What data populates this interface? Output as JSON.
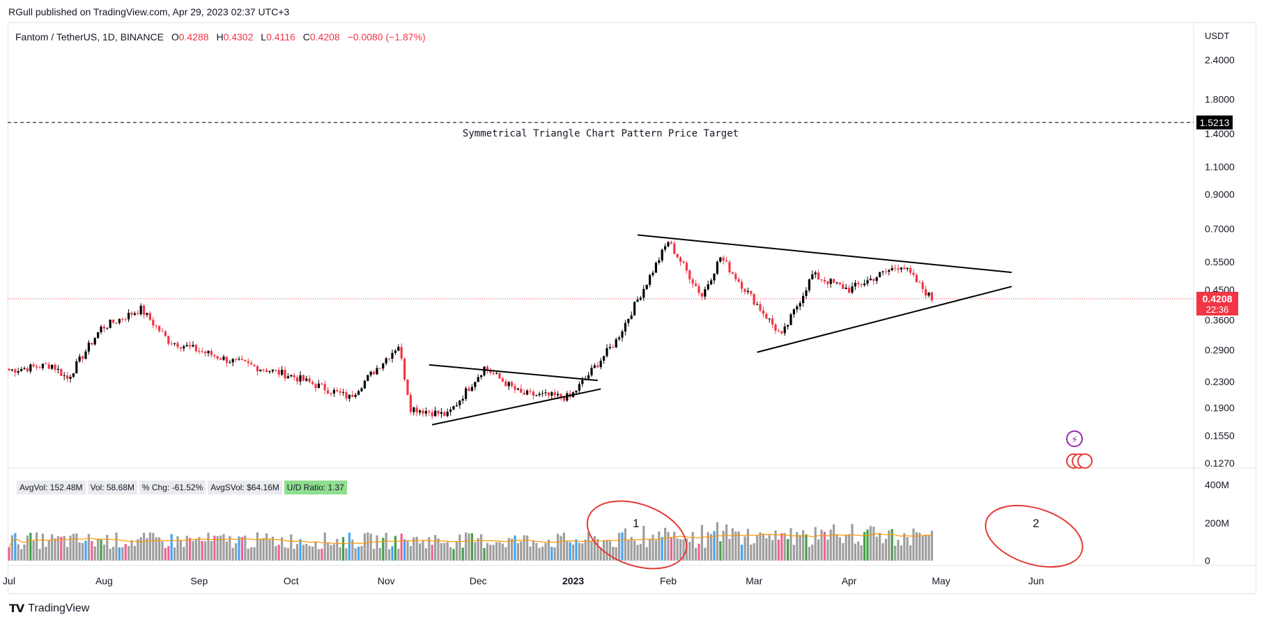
{
  "published_line": "RGull published on TradingView.com, Apr 29, 2023 02:37 UTC+3",
  "brand": "TradingView",
  "legend": {
    "symbol": "Fantom / TetherUS, 1D, BINANCE",
    "open_label": "O",
    "open": "0.4288",
    "high_label": "H",
    "high": "0.4302",
    "low_label": "L",
    "low": "0.4116",
    "close_label": "C",
    "close": "0.4208",
    "change": "−0.0080 (−1.87%)"
  },
  "indicators": [
    {
      "text": "AvgVol: 152.48M",
      "highlight": false
    },
    {
      "text": "Vol: 58.68M",
      "highlight": false
    },
    {
      "text": "% Chg: -61.52%",
      "highlight": false
    },
    {
      "text": "AvgSVol: $64.16M",
      "highlight": false
    },
    {
      "text": "U/D Ratio: 1.37",
      "highlight": true
    }
  ],
  "colors": {
    "up": "#089981",
    "down": "#f23645",
    "candle_up": "#000000",
    "candle_down": "#f23645",
    "vol_up": "#43a047",
    "vol_down": "#f06292",
    "vol_blue": "#42a5f5",
    "vol_grey": "#9e9e9e",
    "avg_line": "#ff9800",
    "dot": "#4dd0e1"
  },
  "chart_data": [
    {
      "type": "candlestick",
      "title": "Fantom / TetherUS, 1D, BINANCE",
      "currency": "USDT",
      "scale": "log",
      "y_ticks": [
        "2.4000",
        "1.8000",
        "1.4000",
        "1.1000",
        "0.9000",
        "0.7000",
        "0.5500",
        "0.4500",
        "0.3600",
        "0.2900",
        "0.2300",
        "0.1900",
        "0.1550",
        "0.1270"
      ],
      "x_ticks": [
        "Jul",
        "Aug",
        "Sep",
        "Oct",
        "Nov",
        "Dec",
        "2023",
        "Feb",
        "Mar",
        "Apr",
        "May",
        "Jun"
      ],
      "last_price": "0.4208",
      "countdown": "22:36",
      "target_price": "1.5213",
      "target_label": "Symmetrical Triangle Chart Pattern Price Target",
      "closing_prices_approx": [
        {
          "date": "2022-07-01",
          "close": 0.25
        },
        {
          "date": "2022-07-15",
          "close": 0.26
        },
        {
          "date": "2022-07-20",
          "close": 0.235
        },
        {
          "date": "2022-07-31",
          "close": 0.34
        },
        {
          "date": "2022-08-13",
          "close": 0.39
        },
        {
          "date": "2022-08-22",
          "close": 0.31
        },
        {
          "date": "2022-09-10",
          "close": 0.27
        },
        {
          "date": "2022-10-01",
          "close": 0.24
        },
        {
          "date": "2022-10-20",
          "close": 0.205
        },
        {
          "date": "2022-11-05",
          "close": 0.3
        },
        {
          "date": "2022-11-09",
          "close": 0.19
        },
        {
          "date": "2022-11-21",
          "close": 0.18
        },
        {
          "date": "2022-12-03",
          "close": 0.255
        },
        {
          "date": "2022-12-15",
          "close": 0.21
        },
        {
          "date": "2022-12-31",
          "close": 0.205
        },
        {
          "date": "2023-01-15",
          "close": 0.31
        },
        {
          "date": "2023-02-01",
          "close": 0.64
        },
        {
          "date": "2023-02-12",
          "close": 0.43
        },
        {
          "date": "2023-02-18",
          "close": 0.57
        },
        {
          "date": "2023-03-10",
          "close": 0.32
        },
        {
          "date": "2023-03-20",
          "close": 0.5
        },
        {
          "date": "2023-04-01",
          "close": 0.45
        },
        {
          "date": "2023-04-18",
          "close": 0.54
        },
        {
          "date": "2023-04-28",
          "close": 0.42
        }
      ],
      "annotations": [
        "1",
        "2"
      ]
    },
    {
      "type": "bar",
      "title": "Volume",
      "y_ticks": [
        "400M",
        "200M",
        "0"
      ],
      "series": [
        {
          "name": "AvgVol",
          "value": "152.48M"
        }
      ]
    }
  ]
}
